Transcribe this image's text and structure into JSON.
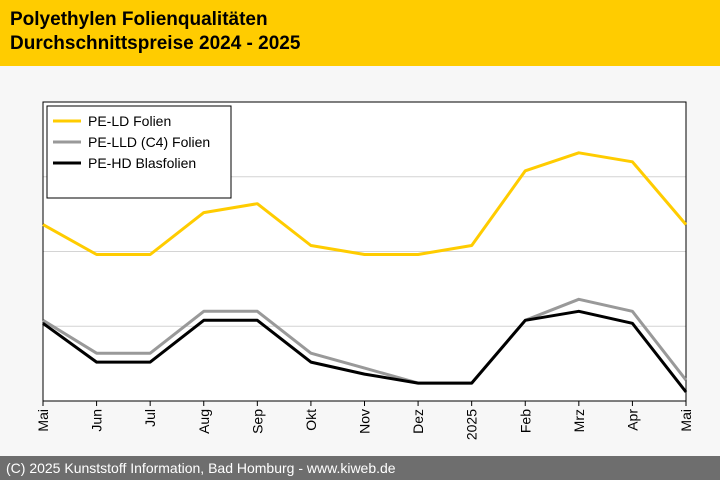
{
  "header": {
    "title_line1": "Polyethylen Folienqualitäten",
    "title_line2": "Durchschnittspreise 2024 - 2025"
  },
  "footer": {
    "text": "(C) 2025 Kunststoff Information, Bad Homburg - www.kiweb.de"
  },
  "colors": {
    "header_bg": "#ffcc00",
    "footer_bg": "#6e6e6e",
    "series_ld": "#ffcc00",
    "series_lld": "#999999",
    "series_hd": "#000000"
  },
  "chart_data": {
    "type": "line",
    "title": "",
    "xlabel": "",
    "ylabel": "",
    "ylim": [
      0,
      100
    ],
    "grid": true,
    "legend_position": "top-left",
    "categories": [
      "Mai",
      "Jun",
      "Jul",
      "Aug",
      "Sep",
      "Okt",
      "Nov",
      "Dez",
      "2025",
      "Feb",
      "Mrz",
      "Apr",
      "Mai"
    ],
    "series": [
      {
        "name": "PE-LD Folien",
        "color": "#ffcc00",
        "values": [
          59,
          49,
          49,
          63,
          66,
          52,
          49,
          49,
          52,
          77,
          83,
          80,
          59
        ]
      },
      {
        "name": "PE-LLD (C4) Folien",
        "color": "#999999",
        "values": [
          27,
          16,
          16,
          30,
          30,
          16,
          11,
          6,
          6,
          27,
          34,
          30,
          7
        ]
      },
      {
        "name": "PE-HD Blasfolien",
        "color": "#000000",
        "values": [
          26,
          13,
          13,
          27,
          27,
          13,
          9,
          6,
          6,
          27,
          30,
          26,
          3
        ]
      }
    ]
  }
}
